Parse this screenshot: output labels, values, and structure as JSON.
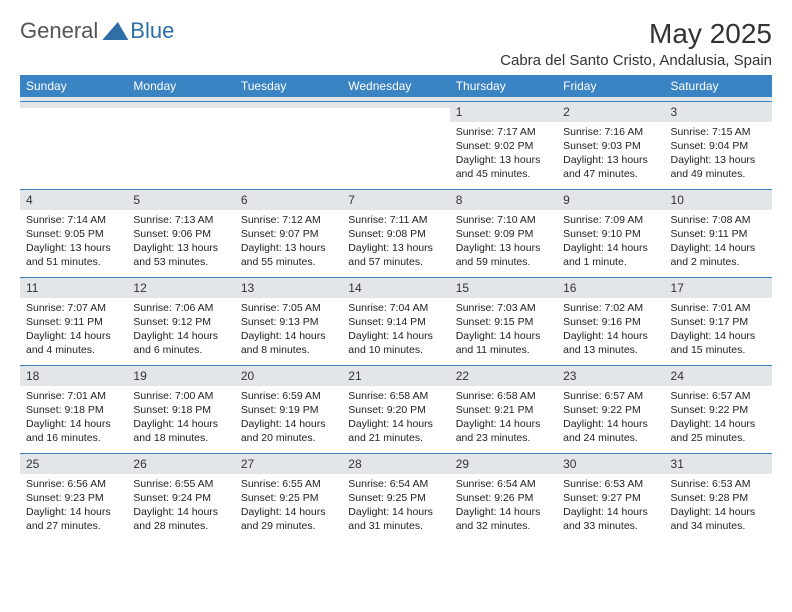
{
  "brand": {
    "part1": "General",
    "part2": "Blue"
  },
  "title": "May 2025",
  "location": "Cabra del Santo Cristo, Andalusia, Spain",
  "colors": {
    "header_bg": "#3b84c4",
    "header_text": "#ffffff",
    "daynum_bg": "#e3e6e9",
    "border": "#3b84c4",
    "brand_blue": "#2f6fa8"
  },
  "weekdays": [
    "Sunday",
    "Monday",
    "Tuesday",
    "Wednesday",
    "Thursday",
    "Friday",
    "Saturday"
  ],
  "weeks": [
    [
      {
        "n": "",
        "sr": "",
        "ss": "",
        "dl": ""
      },
      {
        "n": "",
        "sr": "",
        "ss": "",
        "dl": ""
      },
      {
        "n": "",
        "sr": "",
        "ss": "",
        "dl": ""
      },
      {
        "n": "",
        "sr": "",
        "ss": "",
        "dl": ""
      },
      {
        "n": "1",
        "sr": "Sunrise: 7:17 AM",
        "ss": "Sunset: 9:02 PM",
        "dl": "Daylight: 13 hours and 45 minutes."
      },
      {
        "n": "2",
        "sr": "Sunrise: 7:16 AM",
        "ss": "Sunset: 9:03 PM",
        "dl": "Daylight: 13 hours and 47 minutes."
      },
      {
        "n": "3",
        "sr": "Sunrise: 7:15 AM",
        "ss": "Sunset: 9:04 PM",
        "dl": "Daylight: 13 hours and 49 minutes."
      }
    ],
    [
      {
        "n": "4",
        "sr": "Sunrise: 7:14 AM",
        "ss": "Sunset: 9:05 PM",
        "dl": "Daylight: 13 hours and 51 minutes."
      },
      {
        "n": "5",
        "sr": "Sunrise: 7:13 AM",
        "ss": "Sunset: 9:06 PM",
        "dl": "Daylight: 13 hours and 53 minutes."
      },
      {
        "n": "6",
        "sr": "Sunrise: 7:12 AM",
        "ss": "Sunset: 9:07 PM",
        "dl": "Daylight: 13 hours and 55 minutes."
      },
      {
        "n": "7",
        "sr": "Sunrise: 7:11 AM",
        "ss": "Sunset: 9:08 PM",
        "dl": "Daylight: 13 hours and 57 minutes."
      },
      {
        "n": "8",
        "sr": "Sunrise: 7:10 AM",
        "ss": "Sunset: 9:09 PM",
        "dl": "Daylight: 13 hours and 59 minutes."
      },
      {
        "n": "9",
        "sr": "Sunrise: 7:09 AM",
        "ss": "Sunset: 9:10 PM",
        "dl": "Daylight: 14 hours and 1 minute."
      },
      {
        "n": "10",
        "sr": "Sunrise: 7:08 AM",
        "ss": "Sunset: 9:11 PM",
        "dl": "Daylight: 14 hours and 2 minutes."
      }
    ],
    [
      {
        "n": "11",
        "sr": "Sunrise: 7:07 AM",
        "ss": "Sunset: 9:11 PM",
        "dl": "Daylight: 14 hours and 4 minutes."
      },
      {
        "n": "12",
        "sr": "Sunrise: 7:06 AM",
        "ss": "Sunset: 9:12 PM",
        "dl": "Daylight: 14 hours and 6 minutes."
      },
      {
        "n": "13",
        "sr": "Sunrise: 7:05 AM",
        "ss": "Sunset: 9:13 PM",
        "dl": "Daylight: 14 hours and 8 minutes."
      },
      {
        "n": "14",
        "sr": "Sunrise: 7:04 AM",
        "ss": "Sunset: 9:14 PM",
        "dl": "Daylight: 14 hours and 10 minutes."
      },
      {
        "n": "15",
        "sr": "Sunrise: 7:03 AM",
        "ss": "Sunset: 9:15 PM",
        "dl": "Daylight: 14 hours and 11 minutes."
      },
      {
        "n": "16",
        "sr": "Sunrise: 7:02 AM",
        "ss": "Sunset: 9:16 PM",
        "dl": "Daylight: 14 hours and 13 minutes."
      },
      {
        "n": "17",
        "sr": "Sunrise: 7:01 AM",
        "ss": "Sunset: 9:17 PM",
        "dl": "Daylight: 14 hours and 15 minutes."
      }
    ],
    [
      {
        "n": "18",
        "sr": "Sunrise: 7:01 AM",
        "ss": "Sunset: 9:18 PM",
        "dl": "Daylight: 14 hours and 16 minutes."
      },
      {
        "n": "19",
        "sr": "Sunrise: 7:00 AM",
        "ss": "Sunset: 9:18 PM",
        "dl": "Daylight: 14 hours and 18 minutes."
      },
      {
        "n": "20",
        "sr": "Sunrise: 6:59 AM",
        "ss": "Sunset: 9:19 PM",
        "dl": "Daylight: 14 hours and 20 minutes."
      },
      {
        "n": "21",
        "sr": "Sunrise: 6:58 AM",
        "ss": "Sunset: 9:20 PM",
        "dl": "Daylight: 14 hours and 21 minutes."
      },
      {
        "n": "22",
        "sr": "Sunrise: 6:58 AM",
        "ss": "Sunset: 9:21 PM",
        "dl": "Daylight: 14 hours and 23 minutes."
      },
      {
        "n": "23",
        "sr": "Sunrise: 6:57 AM",
        "ss": "Sunset: 9:22 PM",
        "dl": "Daylight: 14 hours and 24 minutes."
      },
      {
        "n": "24",
        "sr": "Sunrise: 6:57 AM",
        "ss": "Sunset: 9:22 PM",
        "dl": "Daylight: 14 hours and 25 minutes."
      }
    ],
    [
      {
        "n": "25",
        "sr": "Sunrise: 6:56 AM",
        "ss": "Sunset: 9:23 PM",
        "dl": "Daylight: 14 hours and 27 minutes."
      },
      {
        "n": "26",
        "sr": "Sunrise: 6:55 AM",
        "ss": "Sunset: 9:24 PM",
        "dl": "Daylight: 14 hours and 28 minutes."
      },
      {
        "n": "27",
        "sr": "Sunrise: 6:55 AM",
        "ss": "Sunset: 9:25 PM",
        "dl": "Daylight: 14 hours and 29 minutes."
      },
      {
        "n": "28",
        "sr": "Sunrise: 6:54 AM",
        "ss": "Sunset: 9:25 PM",
        "dl": "Daylight: 14 hours and 31 minutes."
      },
      {
        "n": "29",
        "sr": "Sunrise: 6:54 AM",
        "ss": "Sunset: 9:26 PM",
        "dl": "Daylight: 14 hours and 32 minutes."
      },
      {
        "n": "30",
        "sr": "Sunrise: 6:53 AM",
        "ss": "Sunset: 9:27 PM",
        "dl": "Daylight: 14 hours and 33 minutes."
      },
      {
        "n": "31",
        "sr": "Sunrise: 6:53 AM",
        "ss": "Sunset: 9:28 PM",
        "dl": "Daylight: 14 hours and 34 minutes."
      }
    ]
  ]
}
